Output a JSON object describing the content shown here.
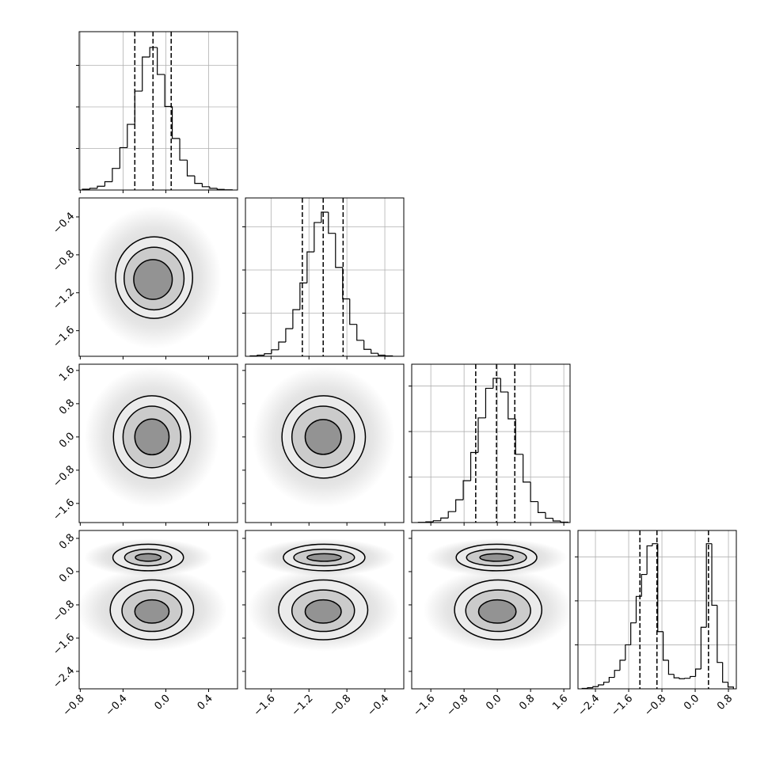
{
  "chart_data": {
    "type": "corner",
    "grid": true,
    "hist_color": "#000000",
    "quantile_color": "#000000",
    "contour_color": "#000000",
    "cloud_color": "#9a9a9a",
    "fills": [
      "#ededed",
      "#c6c6c6",
      "#8a8a8a"
    ],
    "params": [
      {
        "lim": [
          -0.81,
          0.67
        ],
        "ticks": [
          {
            "value": -0.8,
            "label": "−0.8"
          },
          {
            "value": -0.4,
            "label": "−0.4"
          },
          {
            "value": 0,
            "label": "0.0"
          },
          0.4
        ],
        "quantiles": [
          -0.29,
          -0.12,
          0.05
        ],
        "hist": {
          "ylim": [
            0,
            3810
          ],
          "yticks": [
            1000,
            2000,
            3000
          ],
          "bins": [
            -0.78,
            -0.71,
            -0.64,
            -0.57,
            -0.5,
            -0.43,
            -0.36,
            -0.29,
            -0.22,
            -0.15,
            -0.08,
            -0.01,
            0.06,
            0.13,
            0.2,
            0.27,
            0.34,
            0.41,
            0.48,
            0.55,
            0.62
          ],
          "counts": [
            20,
            40,
            90,
            200,
            520,
            1020,
            1580,
            2380,
            3200,
            3430,
            2780,
            2010,
            1240,
            720,
            340,
            160,
            80,
            40,
            15,
            5
          ]
        }
      },
      {
        "lim": [
          -1.87,
          -0.2
        ],
        "ticks": [
          {
            "value": -1.6,
            "label": "−1.6"
          },
          {
            "value": -1.2,
            "label": "−1.2"
          },
          {
            "value": -0.8,
            "label": "−0.8"
          },
          {
            "value": -0.4,
            "label": "−0.4"
          }
        ],
        "quantiles": [
          -1.27,
          -1.05,
          -0.84
        ],
        "hist": {
          "ylim": [
            0,
            3670
          ],
          "yticks": [
            1000,
            2000,
            3000
          ],
          "bins": [
            -1.82,
            -1.745,
            -1.67,
            -1.595,
            -1.52,
            -1.445,
            -1.37,
            -1.295,
            -1.22,
            -1.145,
            -1.07,
            -0.995,
            -0.92,
            -0.845,
            -0.77,
            -0.695,
            -0.62,
            -0.545,
            -0.47,
            -0.395,
            -0.32
          ],
          "counts": [
            10,
            25,
            60,
            150,
            330,
            640,
            1080,
            1700,
            2420,
            3100,
            3340,
            2850,
            2060,
            1330,
            740,
            370,
            160,
            70,
            25,
            10
          ]
        }
      },
      {
        "lim": [
          -2.06,
          1.75
        ],
        "ticks": [
          {
            "value": -1.6,
            "label": "−1.6"
          },
          {
            "value": -0.8,
            "label": "−0.8"
          },
          {
            "value": 0,
            "label": "0.0"
          },
          0.8,
          1.6
        ],
        "quantiles": [
          -0.52,
          -0.02,
          0.42
        ],
        "hist": {
          "ylim": [
            0,
            3480
          ],
          "yticks": [
            1000,
            2000,
            3000
          ],
          "bins": [
            -1.9,
            -1.72,
            -1.54,
            -1.36,
            -1.18,
            -1.0,
            -0.82,
            -0.64,
            -0.46,
            -0.28,
            -0.1,
            0.08,
            0.26,
            0.44,
            0.62,
            0.8,
            0.98,
            1.16,
            1.34,
            1.52,
            1.7
          ],
          "counts": [
            5,
            15,
            40,
            100,
            240,
            500,
            920,
            1540,
            2300,
            2950,
            3170,
            2870,
            2280,
            1500,
            890,
            460,
            220,
            95,
            35,
            10
          ]
        }
      },
      {
        "lim": [
          -2.82,
          0.99
        ],
        "ticks": [
          {
            "value": -2.4,
            "label": "−2.4"
          },
          {
            "value": -1.6,
            "label": "−1.6"
          },
          {
            "value": -0.8,
            "label": "−0.8"
          },
          {
            "value": 0,
            "label": "0.0"
          },
          0.8
        ],
        "quantiles": [
          -1.33,
          -0.92,
          0.32
        ],
        "hist": {
          "ylim": [
            0,
            3600
          ],
          "yticks": [
            1000,
            2000,
            3000
          ],
          "bins": [
            -2.72,
            -2.59,
            -2.46,
            -2.33,
            -2.2,
            -2.07,
            -1.94,
            -1.81,
            -1.68,
            -1.55,
            -1.42,
            -1.29,
            -1.16,
            -1.03,
            -0.9,
            -0.77,
            -0.64,
            -0.51,
            -0.38,
            -0.25,
            -0.12,
            0.01,
            0.14,
            0.27,
            0.4,
            0.53,
            0.66,
            0.79,
            0.92
          ],
          "counts": [
            10,
            25,
            50,
            90,
            150,
            260,
            420,
            650,
            1000,
            1500,
            2100,
            2600,
            3250,
            3300,
            1300,
            650,
            330,
            250,
            230,
            240,
            280,
            450,
            1400,
            3300,
            1900,
            600,
            150,
            40
          ]
        }
      }
    ],
    "panels": [
      {
        "clusters": [
          {
            "cloud": {
              "cx": -0.11,
              "cy": -1.04,
              "rx": 0.63,
              "ry": 0.75
            },
            "contours": [
              {
                "cx": -0.11,
                "cy": -1.04,
                "rx": 0.36,
                "ry": 0.43
              },
              {
                "cx": -0.11,
                "cy": -1.05,
                "rx": 0.28,
                "ry": 0.33
              },
              {
                "cx": -0.12,
                "cy": -1.06,
                "rx": 0.18,
                "ry": 0.21
              }
            ]
          }
        ]
      },
      {
        "clusters": [
          {
            "cloud": {
              "cx": -0.13,
              "cy": 0.0,
              "rx": 0.63,
              "ry": 1.7
            },
            "contours": [
              {
                "cx": -0.13,
                "cy": 0.0,
                "rx": 0.36,
                "ry": 0.99
              },
              {
                "cx": -0.13,
                "cy": 0.0,
                "rx": 0.27,
                "ry": 0.74
              },
              {
                "cx": -0.13,
                "cy": 0.0,
                "rx": 0.16,
                "ry": 0.43
              }
            ]
          }
        ]
      },
      {
        "clusters": [
          {
            "cloud": {
              "cx": -1.045,
              "cy": 0.0,
              "rx": 0.75,
              "ry": 1.7
            },
            "contours": [
              {
                "cx": -1.045,
                "cy": 0.0,
                "rx": 0.44,
                "ry": 0.99
              },
              {
                "cx": -1.05,
                "cy": 0.0,
                "rx": 0.33,
                "ry": 0.74
              },
              {
                "cx": -1.05,
                "cy": 0.0,
                "rx": 0.19,
                "ry": 0.42
              }
            ]
          }
        ]
      },
      {
        "clusters": [
          {
            "cloud": {
              "cx": -0.165,
              "cy": 0.34,
              "rx": 0.6,
              "ry": 0.45
            },
            "contours": [
              {
                "cx": -0.165,
                "cy": 0.34,
                "rx": 0.33,
                "ry": 0.32
              },
              {
                "cx": -0.165,
                "cy": 0.34,
                "rx": 0.22,
                "ry": 0.2
              },
              {
                "cx": -0.165,
                "cy": 0.34,
                "rx": 0.12,
                "ry": 0.09
              }
            ]
          },
          {
            "cloud": {
              "cx": -0.13,
              "cy": -0.92,
              "rx": 0.7,
              "ry": 1.0
            },
            "contours": [
              {
                "cx": -0.13,
                "cy": -0.92,
                "rx": 0.39,
                "ry": 0.72
              },
              {
                "cx": -0.13,
                "cy": -0.94,
                "rx": 0.28,
                "ry": 0.5
              },
              {
                "cx": -0.13,
                "cy": -0.96,
                "rx": 0.16,
                "ry": 0.28
              }
            ]
          }
        ]
      },
      {
        "clusters": [
          {
            "cloud": {
              "cx": -1.04,
              "cy": 0.34,
              "rx": 0.75,
              "ry": 0.45
            },
            "contours": [
              {
                "cx": -1.04,
                "cy": 0.34,
                "rx": 0.43,
                "ry": 0.32
              },
              {
                "cx": -1.04,
                "cy": 0.34,
                "rx": 0.32,
                "ry": 0.2
              },
              {
                "cx": -1.04,
                "cy": 0.34,
                "rx": 0.18,
                "ry": 0.09
              }
            ]
          },
          {
            "cloud": {
              "cx": -1.05,
              "cy": -0.92,
              "rx": 0.8,
              "ry": 1.0
            },
            "contours": [
              {
                "cx": -1.05,
                "cy": -0.92,
                "rx": 0.47,
                "ry": 0.72
              },
              {
                "cx": -1.05,
                "cy": -0.94,
                "rx": 0.33,
                "ry": 0.5
              },
              {
                "cx": -1.05,
                "cy": -0.96,
                "rx": 0.19,
                "ry": 0.28
              }
            ]
          }
        ]
      },
      {
        "clusters": [
          {
            "cloud": {
              "cx": -0.02,
              "cy": 0.34,
              "rx": 1.7,
              "ry": 0.45
            },
            "contours": [
              {
                "cx": -0.02,
                "cy": 0.34,
                "rx": 0.97,
                "ry": 0.32
              },
              {
                "cx": -0.02,
                "cy": 0.34,
                "rx": 0.72,
                "ry": 0.2
              },
              {
                "cx": -0.02,
                "cy": 0.34,
                "rx": 0.4,
                "ry": 0.09
              }
            ]
          },
          {
            "cloud": {
              "cx": 0.02,
              "cy": -0.92,
              "rx": 1.8,
              "ry": 1.0
            },
            "contours": [
              {
                "cx": 0.02,
                "cy": -0.92,
                "rx": 1.05,
                "ry": 0.72
              },
              {
                "cx": 0.02,
                "cy": -0.94,
                "rx": 0.78,
                "ry": 0.5
              },
              {
                "cx": 0.0,
                "cy": -0.96,
                "rx": 0.45,
                "ry": 0.28
              }
            ]
          }
        ]
      }
    ]
  }
}
